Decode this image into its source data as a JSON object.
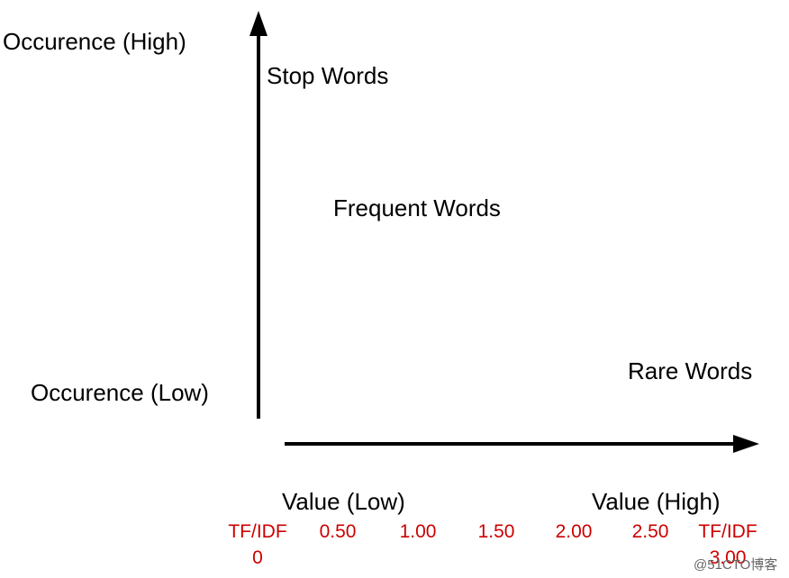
{
  "y_axis": {
    "high": "Occurence (High)",
    "low": "Occurence (Low)"
  },
  "x_axis": {
    "low": "Value (Low)",
    "high": "Value (High)"
  },
  "regions": {
    "stop": "Stop Words",
    "frequent": "Frequent Words",
    "rare": "Rare Words"
  },
  "scale": {
    "start": [
      "TF/IDF",
      "0"
    ],
    "ticks": [
      "0.50",
      "1.00",
      "1.50",
      "2.00",
      "2.50"
    ],
    "end": [
      "TF/IDF",
      "3.00"
    ]
  },
  "watermark": "@51CTO博客"
}
